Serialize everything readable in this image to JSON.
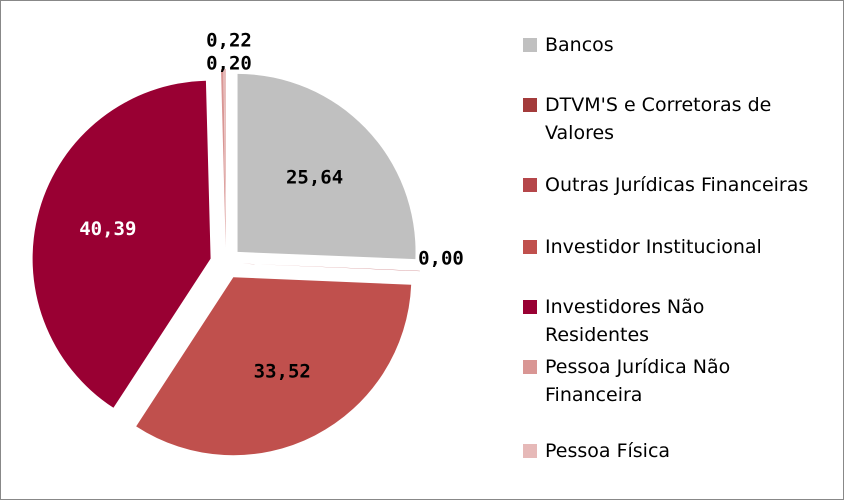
{
  "chart_data": {
    "type": "pie",
    "categories": [
      "Bancos",
      "DTVM'S e Corretoras de Valores",
      "Outras Jurídicas Financeiras",
      "Investidor Institucional",
      "Investidores Não Residentes",
      "Pessoa Jurídica Não Financeira",
      "Pessoa Física"
    ],
    "values": [
      25.64,
      0.0,
      0.03,
      33.52,
      40.39,
      0.22,
      0.2
    ],
    "value_labels": [
      "25,64",
      "0,00",
      null,
      "33,52",
      "40,39",
      "0,22",
      "0,20"
    ],
    "colors": [
      "#c0c0c0",
      "#a33b3b",
      "#b5464a",
      "#c0504d",
      "#990033",
      "#d99694",
      "#e6b9b8"
    ],
    "legend": "right"
  }
}
